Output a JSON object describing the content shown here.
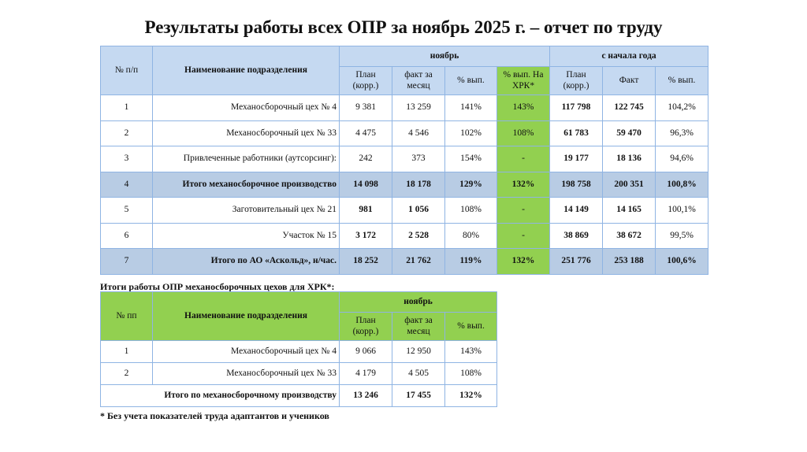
{
  "header": {
    "title": "Результаты работы всех ОПР за ноябрь 2025 г. – отчет по труду"
  },
  "table1": {
    "head": {
      "num": "№ п/п",
      "name": "Наименование подразделения",
      "month": "ноябрь",
      "ytd": "с начала года",
      "sub": [
        "План (корр.)",
        "факт за месяц",
        "% вып.",
        "% вып. На ХРК*",
        "План (корр.)",
        "Факт",
        "% вып."
      ]
    },
    "rows": [
      [
        "1",
        "Механосборочный цех № 4",
        "9 381",
        "13 259",
        "141%",
        "143%",
        "117 798",
        "122 745",
        "104,2%"
      ],
      [
        "2",
        "Механосборочный цех № 33",
        "4 475",
        "4 546",
        "102%",
        "108%",
        "61 783",
        "59 470",
        "96,3%"
      ],
      [
        "3",
        "Привлеченные работники (аутсорсинг):",
        "242",
        "373",
        "154%",
        "-",
        "19 177",
        "18 136",
        "94,6%"
      ],
      [
        "4",
        "Итого механосборочное производство",
        "14 098",
        "18 178",
        "129%",
        "132%",
        "198 758",
        "200 351",
        "100,8%"
      ],
      [
        "5",
        "Заготовительный цех № 21",
        "981",
        "1 056",
        "108%",
        "-",
        "14 149",
        "14 165",
        "100,1%"
      ],
      [
        "6",
        "Участок № 15",
        "3 172",
        "2 528",
        "80%",
        "-",
        "38 869",
        "38 672",
        "99,5%"
      ],
      [
        "7",
        "Итого по АО «Аскольд», н/час.",
        "18 252",
        "21 762",
        "119%",
        "132%",
        "251 776",
        "253 188",
        "100,6%"
      ]
    ]
  },
  "caption2": "Итоги работы ОПР механосборочных цехов для ХРК*:",
  "table2": {
    "head": {
      "num": "№ пп",
      "name": "Наименование подразделения",
      "month": "ноябрь",
      "sub": [
        "План (корр.)",
        "факт за месяц",
        "% вып."
      ]
    },
    "rows": [
      [
        "1",
        "Механосборочный цех № 4",
        "9 066",
        "12 950",
        "143%"
      ],
      [
        "2",
        "Механосборочный цех № 33",
        "4 179",
        "4 505",
        "108%"
      ]
    ],
    "total": [
      "Итого по механосборочному производству",
      "13 246",
      "17 455",
      "132%"
    ]
  },
  "footnote": "* Без учета показателей труда адаптантов и учеников"
}
